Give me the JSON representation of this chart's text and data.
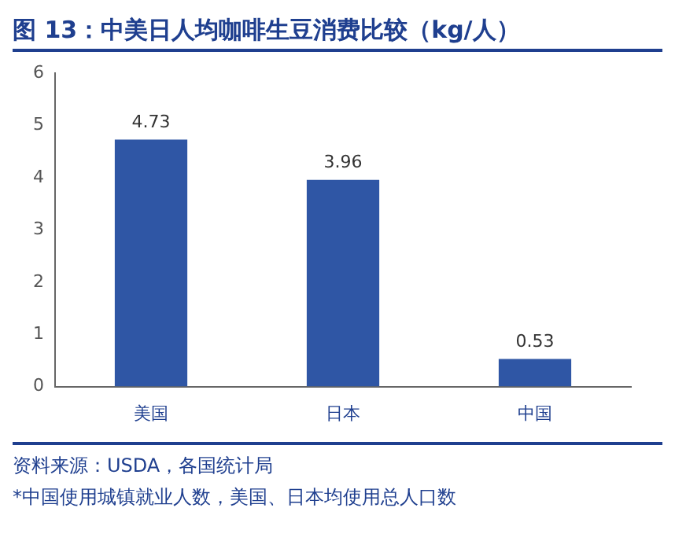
{
  "chart_data": {
    "type": "bar",
    "title": "图 13：中美日人均咖啡生豆消费比较（kg/人）",
    "categories": [
      "美国",
      "日本",
      "中国"
    ],
    "values": [
      4.73,
      3.96,
      0.53
    ],
    "color": "#2f56a5",
    "ylim": [
      0,
      6
    ],
    "yticks": [
      0,
      1,
      2,
      3,
      4,
      5,
      6
    ],
    "grid": false,
    "data_labels": true,
    "annotations": [
      "资料来源：USDA，各国统计局",
      "*中国使用城镇就业人数，美国、日本均使用总人口数"
    ]
  }
}
